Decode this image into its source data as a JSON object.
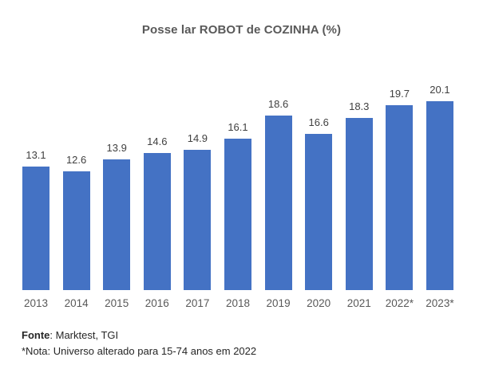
{
  "title": "Posse lar ROBOT de COZINHA (%)",
  "colors": {
    "bar": "#4472C4",
    "title_text": "#595959",
    "value_label": "#404040",
    "year_label": "#595959",
    "footer_text": "#262626",
    "background": "#FFFFFF"
  },
  "footer": {
    "fonte_label": "Fonte",
    "fonte_rest": ": Marktest, TGI",
    "nota": "*Nota: Universo alterado para 15-74 anos em 2022"
  },
  "chart_data": {
    "type": "bar",
    "title": "Posse lar ROBOT de COZINHA (%)",
    "categories": [
      "2013",
      "2014",
      "2015",
      "2016",
      "2017",
      "2018",
      "2019",
      "2020",
      "2021",
      "2022*",
      "2023*"
    ],
    "values": [
      13.1,
      12.6,
      13.9,
      14.6,
      14.9,
      16.1,
      18.6,
      16.6,
      18.3,
      19.7,
      20.1
    ],
    "xlabel": "",
    "ylabel": "",
    "ylim": [
      0,
      22
    ],
    "grid": false,
    "legend": "none",
    "data_labels": true,
    "bar_color": "#4472C4"
  }
}
